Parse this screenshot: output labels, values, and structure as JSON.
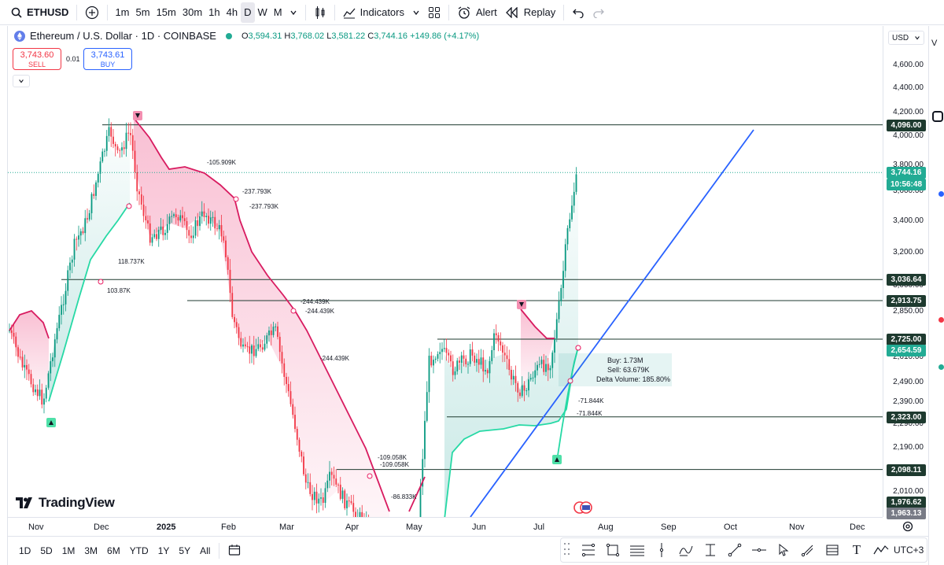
{
  "toolbar": {
    "symbol": "ETHUSD",
    "intervals": [
      "1m",
      "5m",
      "15m",
      "30m",
      "1h",
      "4h",
      "D",
      "W",
      "M"
    ],
    "active_interval": "D",
    "indicators_label": "Indicators",
    "alert_label": "Alert",
    "replay_label": "Replay"
  },
  "legend": {
    "title": "Ethereum / U.S. Dollar · 1D · COINBASE",
    "open_label": "O",
    "open": "3,594.31",
    "high_label": "H",
    "high": "3,768.02",
    "low_label": "L",
    "low": "3,581.22",
    "close_label": "C",
    "close": "3,744.16",
    "change": "+149.86 (+4.17%)"
  },
  "trade": {
    "sell_price": "3,743.60",
    "sell_label": "SELL",
    "spread": "0.01",
    "buy_price": "3,743.61",
    "buy_label": "BUY"
  },
  "price_axis": {
    "currency": "USD",
    "ticks": [
      "4,600.00",
      "4,400.00",
      "4,200.00",
      "4,000.00",
      "3,800.00",
      "3,600.00",
      "3,400.00",
      "3,200.00",
      "3,000.00",
      "2,850.00",
      "2,730.00",
      "2,610.00",
      "2,490.00",
      "2,390.00",
      "2,290.00",
      "2,190.00",
      "2,090.00",
      "2,010.00"
    ],
    "tags": [
      {
        "value": "4,096.00",
        "color": "#1e3a2f"
      },
      {
        "value": "3,744.16",
        "color": "#22ab94"
      },
      {
        "value": "10:56:48",
        "color": "#22ab94"
      },
      {
        "value": "3,036.64",
        "color": "#1e3a2f"
      },
      {
        "value": "2,913.75",
        "color": "#1e3a2f"
      },
      {
        "value": "2,725.00",
        "color": "#1e3a2f"
      },
      {
        "value": "2,654.59",
        "color": "#22ab94"
      },
      {
        "value": "2,323.00",
        "color": "#1e3a2f"
      },
      {
        "value": "2,098.11",
        "color": "#1e3a2f"
      },
      {
        "value": "1,976.62",
        "color": "#1e3a2f"
      },
      {
        "value": "1,963.13",
        "color": "#787b86"
      }
    ]
  },
  "time_axis": [
    "Nov",
    "Dec",
    "2025",
    "Feb",
    "Mar",
    "Apr",
    "May",
    "Jun",
    "Jul",
    "Aug",
    "Sep",
    "Oct",
    "Nov",
    "Dec"
  ],
  "annotations": {
    "a1": "-105.909K",
    "a2": "-237.793K",
    "a3": "-237.793K",
    "a4": "118.737K",
    "a5": "103.87K",
    "a6": "-244.439K",
    "a7": "-244.439K",
    "a8": "-244.439K",
    "a9": "-109.058K",
    "a10": "-109.058K",
    "a11": "-86.833K",
    "a12": "-71.844K",
    "a13": "-71.844K",
    "delta_buy": "Buy: 1.73M",
    "delta_sell": "Sell: 63.679K",
    "delta_vol": "Delta Volume: 185.80%"
  },
  "brand": "TradingView",
  "bottom": {
    "ranges": [
      "1D",
      "5D",
      "1M",
      "3M",
      "6M",
      "YTD",
      "1Y",
      "5Y",
      "All"
    ],
    "timezone": "UTC+3"
  }
}
